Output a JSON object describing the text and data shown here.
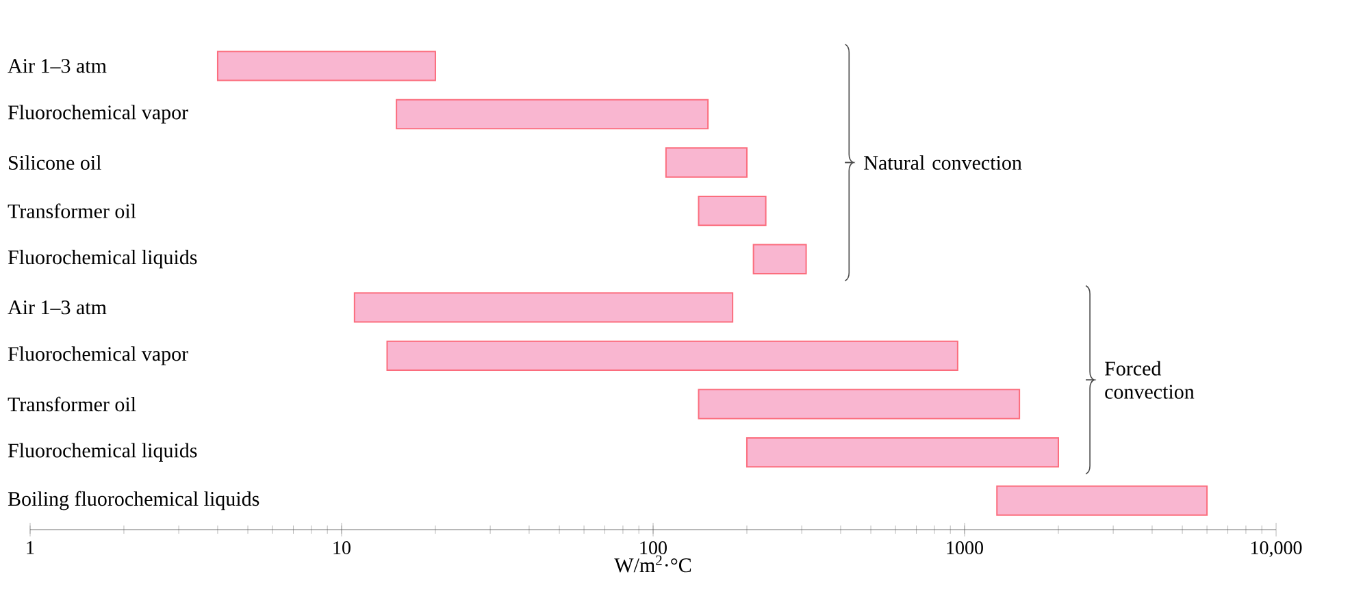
{
  "chart_data": {
    "type": "bar",
    "orientation": "horizontal",
    "log": "x",
    "xlabel": "W/m$^{2}$·°C",
    "categories": [
      "Air 1–3 atm",
      "Fluorochemical vapor",
      "Silicone oil",
      "Transformer oil",
      "Fluorochemical liquids",
      "Air 1–3 atm",
      "Fluorochemical vapor",
      "Transformer oil",
      "Fluorochemical liquids",
      "Boiling fluorochemical liquids"
    ],
    "base": [
      4,
      15,
      110,
      140,
      210,
      11,
      14,
      140,
      200,
      1270
    ],
    "values": [
      16,
      135,
      90,
      90,
      100,
      169,
      936,
      1360,
      1800,
      4730
    ],
    "color": "#f9b6d0",
    "xlim": [
      1,
      10000
    ],
    "xticks": [
      1,
      10,
      100,
      1000,
      {
        "value": 10000,
        "label": "10,000"
      }
    ],
    "annotations": [
      "Natural convection",
      "Forced convection"
    ]
  }
}
